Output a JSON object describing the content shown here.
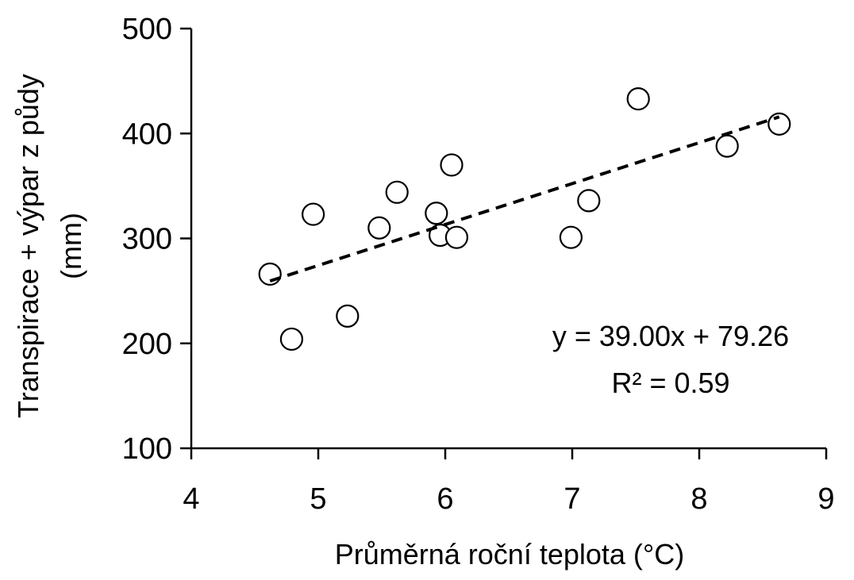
{
  "chart_data": {
    "type": "scatter",
    "xlabel": "Průměrná roční teplota (°C)",
    "ylabel_line1": "Transpirace + výpar z půdy",
    "ylabel_line2": "(mm)",
    "xlim": [
      4,
      9
    ],
    "ylim": [
      100,
      500
    ],
    "x_ticks": [
      "4",
      "5",
      "6",
      "7",
      "8",
      "9"
    ],
    "y_ticks": [
      "100",
      "200",
      "300",
      "400",
      "500"
    ],
    "grid": false,
    "legend": "none",
    "points": [
      {
        "x": 4.62,
        "y": 266
      },
      {
        "x": 4.79,
        "y": 204
      },
      {
        "x": 4.96,
        "y": 323
      },
      {
        "x": 5.23,
        "y": 226
      },
      {
        "x": 5.48,
        "y": 310
      },
      {
        "x": 5.62,
        "y": 344
      },
      {
        "x": 5.93,
        "y": 324
      },
      {
        "x": 5.96,
        "y": 303
      },
      {
        "x": 6.05,
        "y": 370
      },
      {
        "x": 6.09,
        "y": 301
      },
      {
        "x": 6.99,
        "y": 301
      },
      {
        "x": 7.13,
        "y": 336
      },
      {
        "x": 7.52,
        "y": 433
      },
      {
        "x": 8.22,
        "y": 388
      },
      {
        "x": 8.63,
        "y": 409
      }
    ],
    "trendline": {
      "slope": 39.0,
      "intercept": 79.26,
      "x_range": [
        4.62,
        8.63
      ],
      "style": "dashed"
    },
    "annotations": {
      "equation": "y = 39.00x + 79.26",
      "r_squared": "R² = 0.59"
    },
    "colors": {
      "marker_fill": "#ffffff",
      "marker_stroke": "#000000",
      "axis": "#000000",
      "trendline": "#000000"
    }
  }
}
